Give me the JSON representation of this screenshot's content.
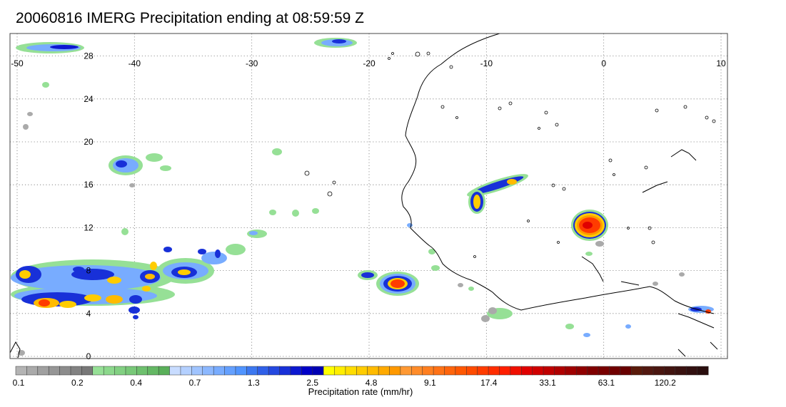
{
  "title": "20060816 IMERG Precipitation ending at 08:59:59 Z",
  "map": {
    "lon_range": [
      -50,
      10
    ],
    "lat_range": [
      0,
      29
    ],
    "lon_ticks": [
      "-50",
      "-40",
      "-30",
      "-20",
      "-10",
      "0",
      "10"
    ],
    "lat_ticks": [
      "28",
      "24",
      "20",
      "16",
      "12",
      "8",
      "4",
      "0"
    ],
    "grid": "dotted"
  },
  "colorbar": {
    "label": "Precipitation rate (mm/hr)",
    "tick_labels": [
      "0.1",
      "0.2",
      "0.4",
      "0.7",
      "1.3",
      "2.5",
      "4.8",
      "9.1",
      "17.4",
      "33.1",
      "63.1",
      "120.2"
    ],
    "colors": [
      "#b4b4b4",
      "#aaaaaa",
      "#a0a0a0",
      "#969696",
      "#8c8c8c",
      "#828282",
      "#787878",
      "#96e096",
      "#8cd88c",
      "#82d082",
      "#78c878",
      "#6ec06e",
      "#64b864",
      "#5ab05a",
      "#c8dcff",
      "#b4d0ff",
      "#a0c4ff",
      "#8cb8ff",
      "#78acff",
      "#64a0ff",
      "#5094ff",
      "#3c78f0",
      "#3060e8",
      "#2448e0",
      "#1830d8",
      "#0c18d0",
      "#0000c8",
      "#0000b4",
      "#ffff00",
      "#ffee00",
      "#ffdd00",
      "#ffcc00",
      "#ffbb00",
      "#ffaa00",
      "#ff9900",
      "#ff9933",
      "#ff8c2a",
      "#ff7f20",
      "#ff7216",
      "#ff650c",
      "#ff5802",
      "#ff4b00",
      "#ff3c00",
      "#ff2d00",
      "#ff1e00",
      "#f00f00",
      "#e00000",
      "#d00000",
      "#c00000",
      "#b00000",
      "#a00000",
      "#900000",
      "#800000",
      "#780000",
      "#700000",
      "#680000",
      "#5a1a0a",
      "#521810",
      "#4a1610",
      "#421410",
      "#3a1210",
      "#321010",
      "#2a0e0e"
    ]
  }
}
